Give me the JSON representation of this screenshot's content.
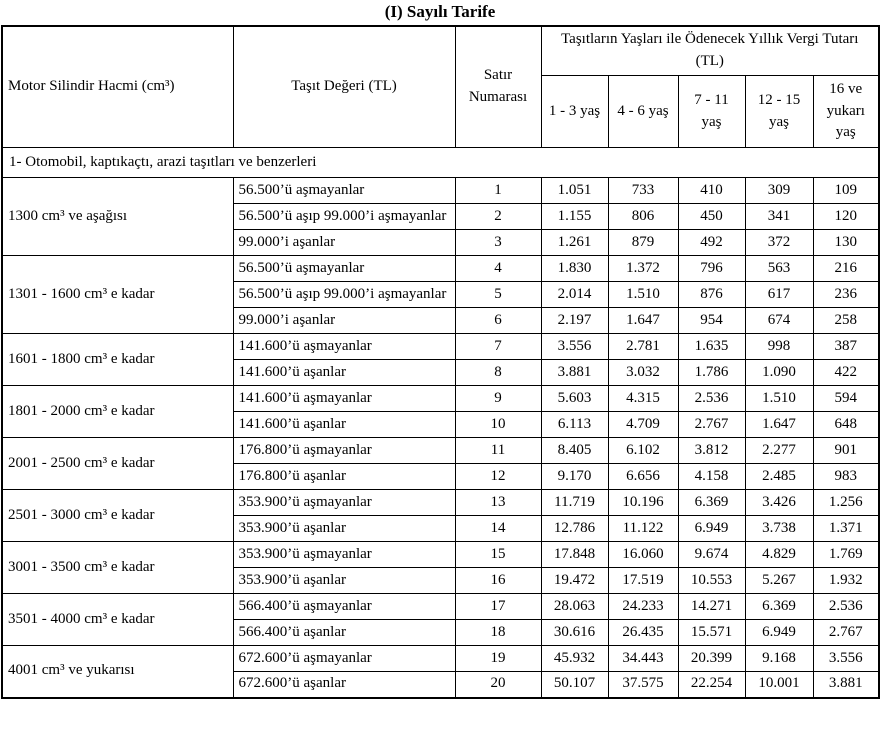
{
  "title": "(I) Sayılı Tarife",
  "table": {
    "headers": {
      "engine": "Motor Silindir Hacmi (cm³)",
      "vehicle_value": "Taşıt Değeri (TL)",
      "row_number": "Satır Numarası",
      "tax_group": "Taşıtların Yaşları ile Ödenecek Yıllık Vergi Tutarı (TL)",
      "ages": [
        "1 - 3 yaş",
        "4 - 6 yaş",
        "7 - 11 yaş",
        "12 - 15 yaş",
        "16 ve yukarı yaş"
      ]
    },
    "section": "1- Otomobil, kaptıkaçtı, arazi taşıtları ve benzerleri",
    "groups": [
      {
        "engine": "1300 cm³ ve aşağısı",
        "rows": [
          {
            "value_range": "56.500’ü aşmayanlar",
            "row_no": "1",
            "taxes": [
              "1.051",
              "733",
              "410",
              "309",
              "109"
            ]
          },
          {
            "value_range": "56.500’ü aşıp 99.000’i aşmayanlar",
            "row_no": "2",
            "taxes": [
              "1.155",
              "806",
              "450",
              "341",
              "120"
            ]
          },
          {
            "value_range": "99.000’i aşanlar",
            "row_no": "3",
            "taxes": [
              "1.261",
              "879",
              "492",
              "372",
              "130"
            ]
          }
        ]
      },
      {
        "engine": "1301 - 1600 cm³ e kadar",
        "rows": [
          {
            "value_range": "56.500’ü aşmayanlar",
            "row_no": "4",
            "taxes": [
              "1.830",
              "1.372",
              "796",
              "563",
              "216"
            ]
          },
          {
            "value_range": "56.500’ü aşıp 99.000’i aşmayanlar",
            "row_no": "5",
            "taxes": [
              "2.014",
              "1.510",
              "876",
              "617",
              "236"
            ]
          },
          {
            "value_range": "99.000’i aşanlar",
            "row_no": "6",
            "taxes": [
              "2.197",
              "1.647",
              "954",
              "674",
              "258"
            ]
          }
        ]
      },
      {
        "engine": "1601 - 1800 cm³ e kadar",
        "rows": [
          {
            "value_range": "141.600’ü aşmayanlar",
            "row_no": "7",
            "taxes": [
              "3.556",
              "2.781",
              "1.635",
              "998",
              "387"
            ]
          },
          {
            "value_range": "141.600’ü aşanlar",
            "row_no": "8",
            "taxes": [
              "3.881",
              "3.032",
              "1.786",
              "1.090",
              "422"
            ]
          }
        ]
      },
      {
        "engine": "1801 - 2000 cm³ e kadar",
        "rows": [
          {
            "value_range": "141.600’ü aşmayanlar",
            "row_no": "9",
            "taxes": [
              "5.603",
              "4.315",
              "2.536",
              "1.510",
              "594"
            ]
          },
          {
            "value_range": "141.600’ü aşanlar",
            "row_no": "10",
            "taxes": [
              "6.113",
              "4.709",
              "2.767",
              "1.647",
              "648"
            ]
          }
        ]
      },
      {
        "engine": "2001 - 2500 cm³ e kadar",
        "rows": [
          {
            "value_range": "176.800’ü aşmayanlar",
            "row_no": "11",
            "taxes": [
              "8.405",
              "6.102",
              "3.812",
              "2.277",
              "901"
            ]
          },
          {
            "value_range": "176.800’ü aşanlar",
            "row_no": "12",
            "taxes": [
              "9.170",
              "6.656",
              "4.158",
              "2.485",
              "983"
            ]
          }
        ]
      },
      {
        "engine": "2501 - 3000 cm³ e kadar",
        "rows": [
          {
            "value_range": "353.900’ü aşmayanlar",
            "row_no": "13",
            "taxes": [
              "11.719",
              "10.196",
              "6.369",
              "3.426",
              "1.256"
            ]
          },
          {
            "value_range": "353.900’ü aşanlar",
            "row_no": "14",
            "taxes": [
              "12.786",
              "11.122",
              "6.949",
              "3.738",
              "1.371"
            ]
          }
        ]
      },
      {
        "engine": "3001 - 3500 cm³ e kadar",
        "rows": [
          {
            "value_range": "353.900’ü aşmayanlar",
            "row_no": "15",
            "taxes": [
              "17.848",
              "16.060",
              "9.674",
              "4.829",
              "1.769"
            ]
          },
          {
            "value_range": "353.900’ü aşanlar",
            "row_no": "16",
            "taxes": [
              "19.472",
              "17.519",
              "10.553",
              "5.267",
              "1.932"
            ]
          }
        ]
      },
      {
        "engine": "3501 - 4000 cm³ e kadar",
        "rows": [
          {
            "value_range": "566.400’ü aşmayanlar",
            "row_no": "17",
            "taxes": [
              "28.063",
              "24.233",
              "14.271",
              "6.369",
              "2.536"
            ]
          },
          {
            "value_range": "566.400’ü aşanlar",
            "row_no": "18",
            "taxes": [
              "30.616",
              "26.435",
              "15.571",
              "6.949",
              "2.767"
            ]
          }
        ]
      },
      {
        "engine": "4001 cm³ ve yukarısı",
        "rows": [
          {
            "value_range": "672.600’ü aşmayanlar",
            "row_no": "19",
            "taxes": [
              "45.932",
              "34.443",
              "20.399",
              "9.168",
              "3.556"
            ]
          },
          {
            "value_range": "672.600’ü aşanlar",
            "row_no": "20",
            "taxes": [
              "50.107",
              "37.575",
              "22.254",
              "10.001",
              "3.881"
            ]
          }
        ]
      }
    ]
  }
}
